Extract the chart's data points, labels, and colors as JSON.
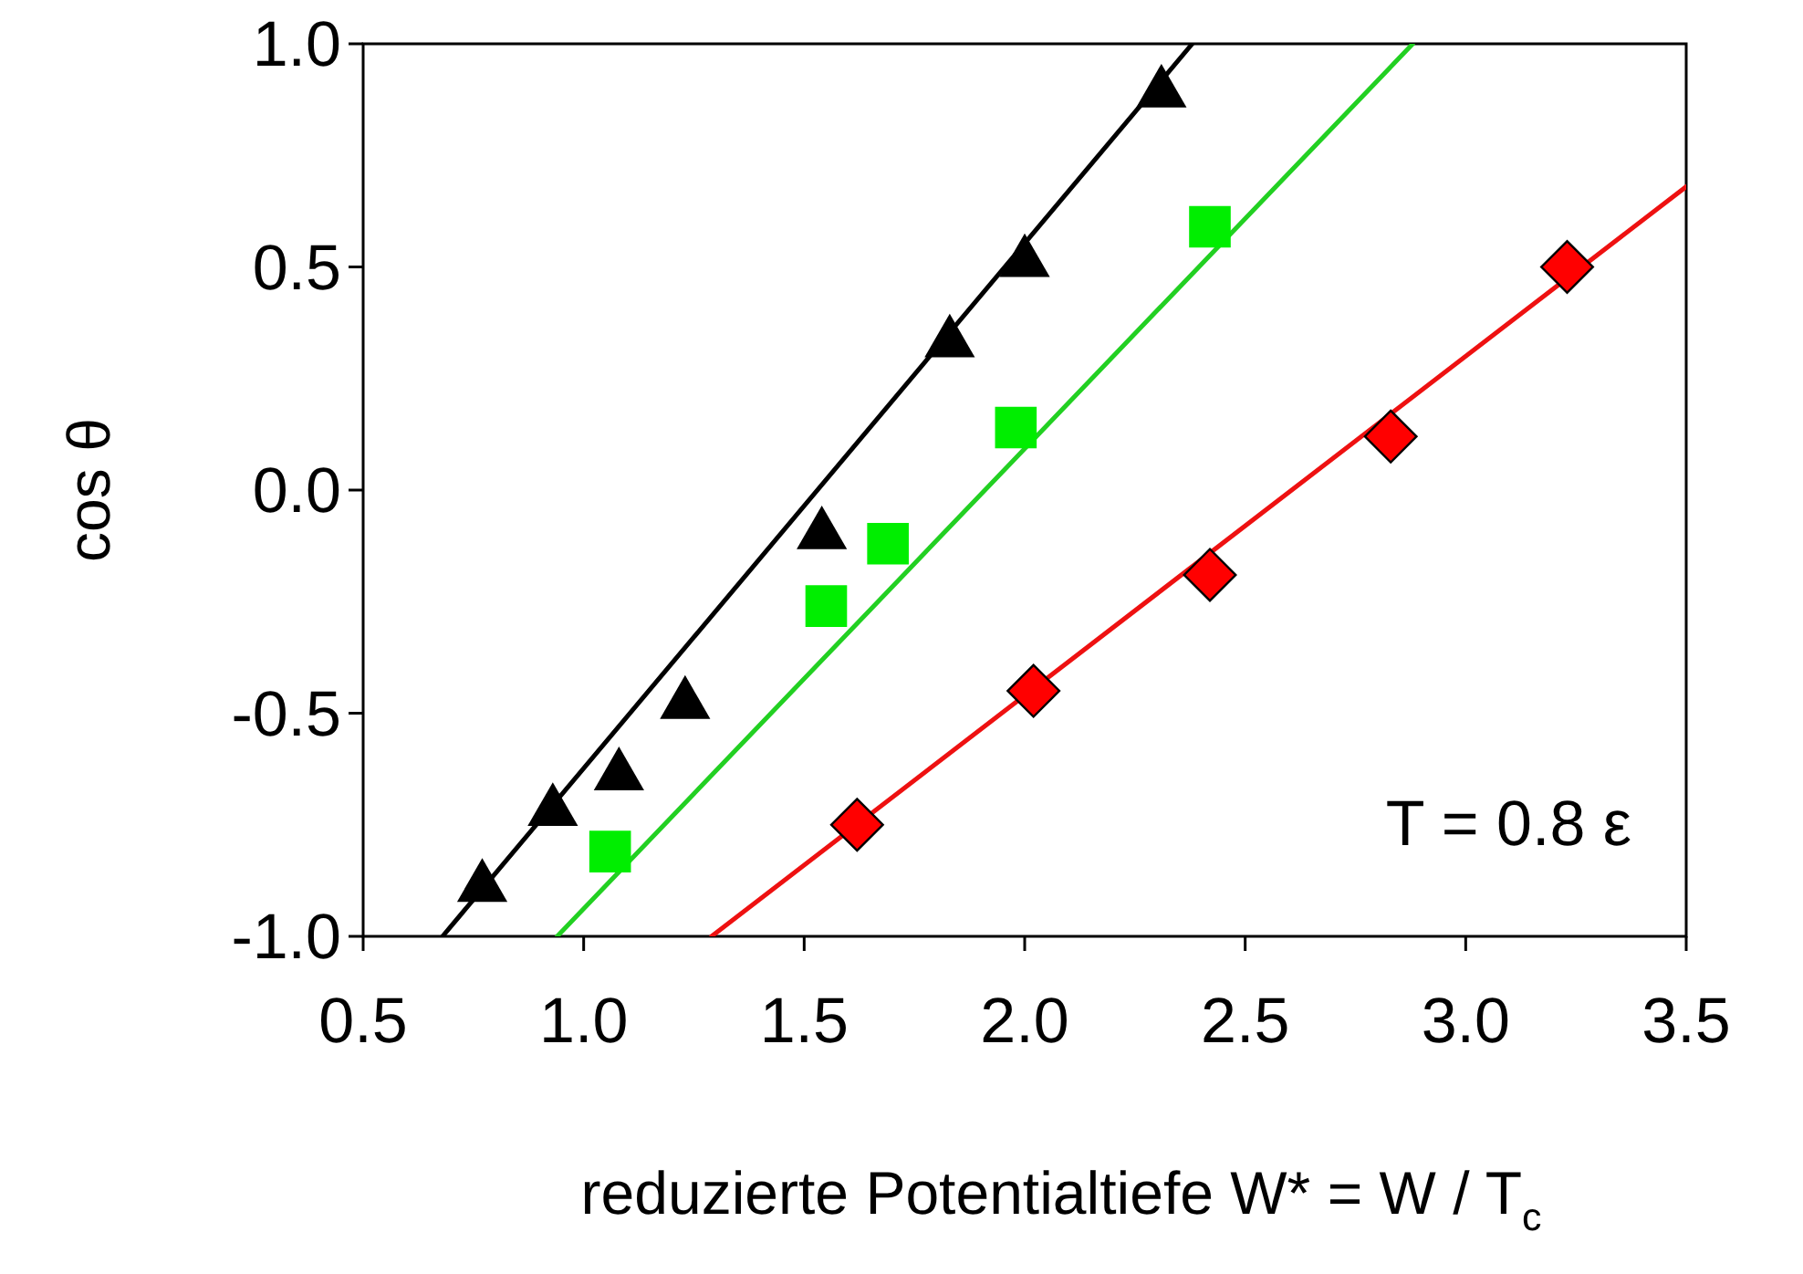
{
  "chart_data": {
    "type": "scatter",
    "xlabel": "reduzierte Potentialtiefe W* = W / T$_{c}$",
    "ylabel": "cos θ",
    "xlim": [
      0.5,
      3.5
    ],
    "xticks": [
      {
        "value": 0.5,
        "label": "0.5"
      },
      {
        "value": 1,
        "label": "1.0"
      },
      {
        "value": 1.5,
        "label": "1.5"
      },
      {
        "value": 2,
        "label": "2.0"
      },
      {
        "value": 2.5,
        "label": "2.5"
      },
      {
        "value": 3,
        "label": "3.0"
      },
      {
        "value": 3.5,
        "label": "3.5"
      }
    ],
    "ylim": [
      -1,
      1
    ],
    "yticks": [
      {
        "value": -1,
        "label": "-1.0"
      },
      {
        "value": -0.5,
        "label": "-0.5"
      },
      {
        "value": 0,
        "label": "0.0"
      },
      {
        "value": 0.5,
        "label": "0.5"
      },
      {
        "value": 1,
        "label": "1.0"
      }
    ],
    "grid": false,
    "annotations": [
      "T = 0.8 ε"
    ],
    "series": [
      {
        "type": "line",
        "color": "#000000",
        "marker": "none",
        "line_style": "solid",
        "x": [
          0.68,
          2.38
        ],
        "values": [
          -1,
          1
        ]
      },
      {
        "type": "line",
        "color": "#22d022",
        "marker": "none",
        "line_style": "solid",
        "x": [
          0.94,
          2.88
        ],
        "values": [
          -1,
          1
        ]
      },
      {
        "type": "line",
        "color": "#ee1111",
        "marker": "none",
        "line_style": "solid",
        "x": [
          1.29,
          3.5
        ],
        "values": [
          -1,
          0.68
        ]
      },
      {
        "color": "#000000",
        "marker": "triangle",
        "x": [
          0.77,
          0.93,
          1.08,
          1.23,
          1.54,
          1.83,
          2.0,
          2.31
        ],
        "values": [
          -0.89,
          -0.72,
          -0.64,
          -0.48,
          -0.1,
          0.33,
          0.51,
          0.89
        ]
      },
      {
        "color": "#00ee00",
        "marker": "square",
        "x": [
          1.06,
          1.55,
          1.69,
          1.98,
          2.42
        ],
        "values": [
          -0.81,
          -0.26,
          -0.12,
          0.14,
          0.59
        ]
      },
      {
        "color": "#ff0000",
        "marker": "diamond",
        "x": [
          1.62,
          2.02,
          2.42,
          2.83,
          3.23
        ],
        "values": [
          -0.75,
          -0.45,
          -0.19,
          0.12,
          0.5
        ]
      }
    ]
  }
}
